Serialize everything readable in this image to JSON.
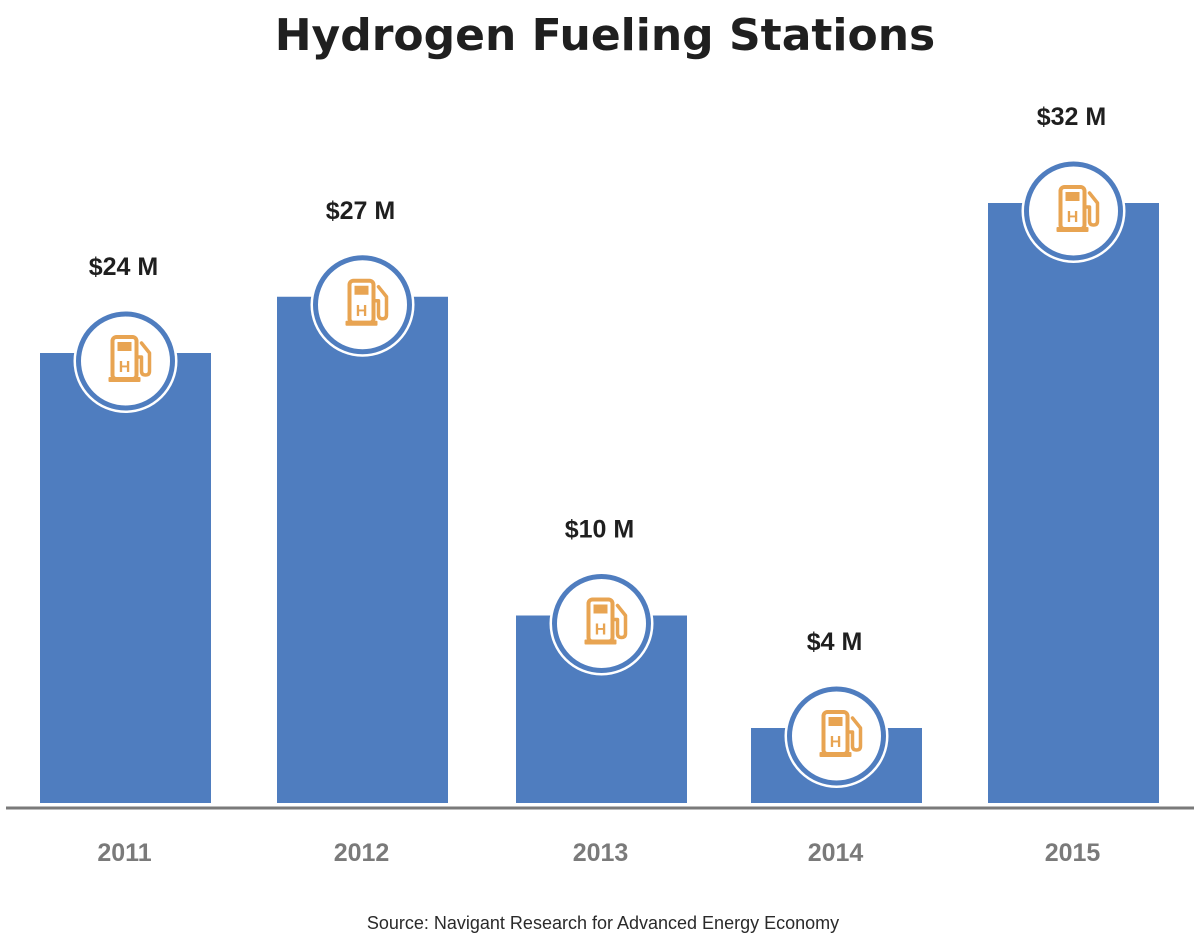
{
  "chart_data": {
    "type": "bar",
    "title": "Hydrogen Fueling Stations",
    "categories": [
      "2011",
      "2012",
      "2013",
      "2014",
      "2015"
    ],
    "values": [
      24,
      27,
      10,
      4,
      32
    ],
    "value_labels": [
      "$24 M",
      "$27 M",
      "$10 M",
      "$4 M",
      "$32 M"
    ],
    "unit": "$ M",
    "ylim": [
      0,
      33
    ],
    "grid": false,
    "legend": "none",
    "icon": "hydrogen-fuel-pump-icon",
    "icon_letter": "H",
    "colors": {
      "bar": "#4f7dbf",
      "icon": "#e8a452",
      "axis": "#7a7a7a",
      "tick_text": "#7a7a7a",
      "label_text": "#1f1f1f"
    }
  },
  "source": "Source: Navigant Research for Advanced Energy Economy"
}
